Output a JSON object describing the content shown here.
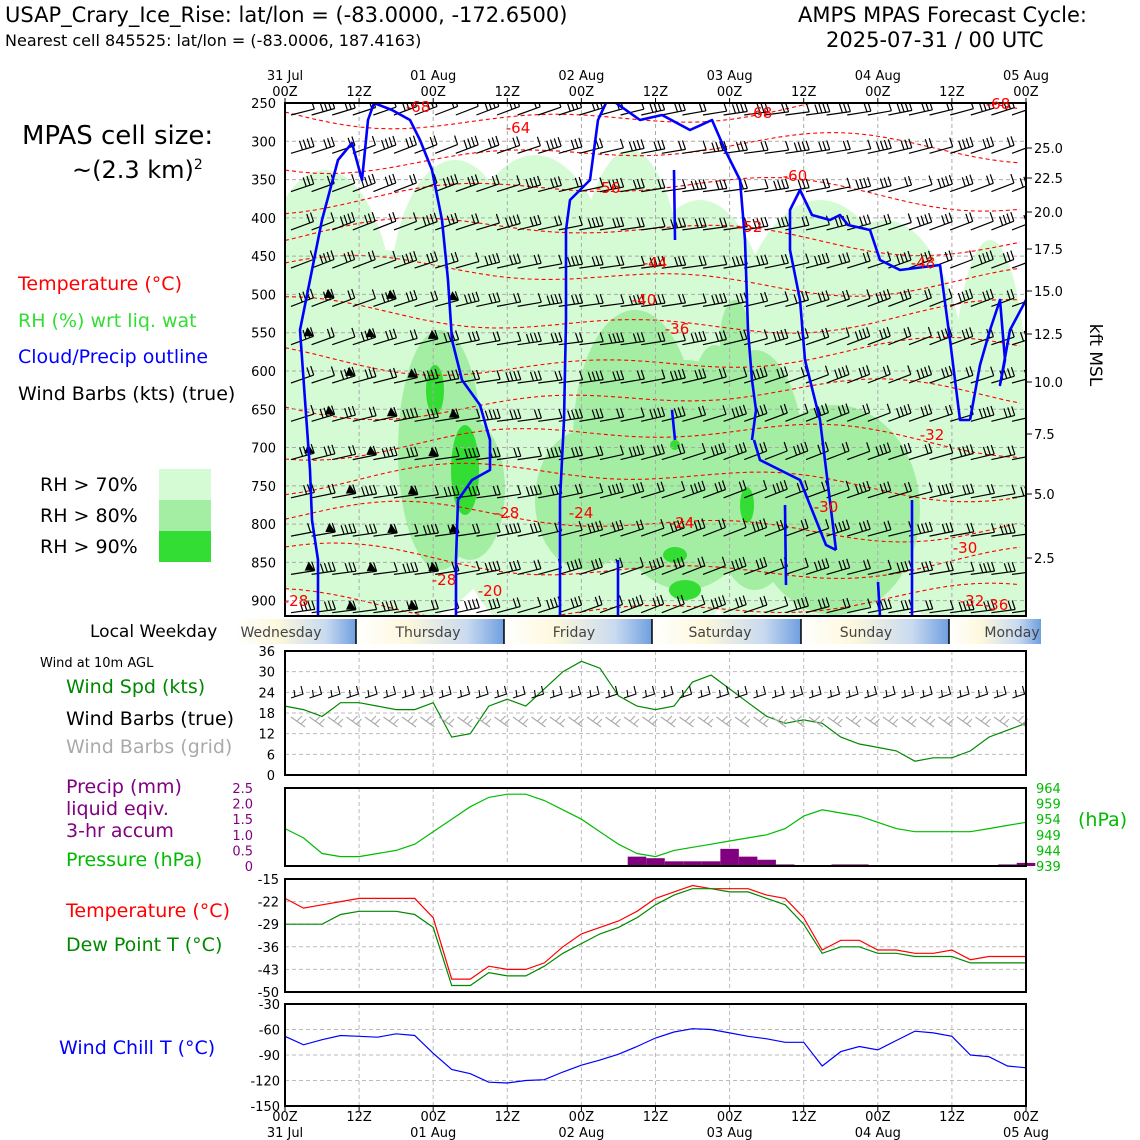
{
  "header": {
    "station": "USAP_Crary_Ice_Rise: lat/lon = (-83.0000, -172.6500)",
    "nearest": "Nearest cell 845525: lat/lon = (-83.0006, 187.4163)",
    "cycle_title": "AMPS MPAS Forecast Cycle:",
    "cycle_time": "2025-07-31 / 00 UTC"
  },
  "cell_size": {
    "line1": "MPAS cell size:",
    "line2": "~(2.3 km)",
    "sup": "2"
  },
  "legend": {
    "temperature": "Temperature (°C)",
    "rh": "RH (%) wrt liq. wat",
    "cloud": "Cloud/Precip outline",
    "barbs": "Wind Barbs (kts) (true)",
    "rh70": "RH > 70%",
    "rh80": "RH > 80%",
    "rh90": "RH > 90%"
  },
  "colors": {
    "temp": "#ff0000",
    "rh": "#33dd33",
    "rh70": "#d4fbd4",
    "rh80": "#a3eea3",
    "rh90": "#33dd33",
    "cloud": "#0000ff",
    "wind": "#008800",
    "precip": "#800080",
    "pressure": "#00bb00",
    "dew": "#008800",
    "chill": "#0000ff",
    "grid_barb": "#aaaaaa"
  },
  "time_axis": {
    "top_dates": [
      "31 Jul",
      "01 Aug",
      "02 Aug",
      "03 Aug",
      "04 Aug",
      "05 Aug"
    ],
    "ticks": [
      "00Z",
      "12Z",
      "00Z",
      "12Z",
      "00Z",
      "12Z",
      "00Z",
      "12Z",
      "00Z",
      "12Z",
      "00Z"
    ],
    "bottom_dates": [
      "31 Jul",
      "01 Aug",
      "02 Aug",
      "03 Aug",
      "04 Aug",
      "05 Aug"
    ]
  },
  "weekday": {
    "label": "Local Weekday",
    "days": [
      "Wednesday",
      "Thursday",
      "Friday",
      "Saturday",
      "Sunday",
      "Monday"
    ]
  },
  "cross_section": {
    "pressure_ticks": [
      "250",
      "300",
      "350",
      "400",
      "450",
      "500",
      "550",
      "600",
      "650",
      "700",
      "750",
      "800",
      "850",
      "900"
    ],
    "kft_ticks": [
      "25.0",
      "22.5",
      "20.0",
      "17.5",
      "15.0",
      "12.5",
      "10.0",
      "7.5",
      "5.0",
      "2.5"
    ],
    "kft_label": "kft MSL",
    "isotherm_labels": [
      "-68",
      "-64",
      "-68",
      "-68",
      "-60",
      "-56",
      "-52",
      "-48",
      "-44",
      "-40",
      "-36",
      "-32",
      "-28",
      "-24",
      "-30",
      "-28",
      "-28",
      "-24",
      "-20",
      "-30",
      "-32",
      "-36"
    ]
  },
  "wind_panel": {
    "title": "Wind at 10m AGL",
    "spd_label": "Wind Spd (kts)",
    "barbs_true": "Wind Barbs (true)",
    "barbs_grid": "Wind Barbs (grid)",
    "yticks": [
      "36",
      "30",
      "24",
      "18",
      "12",
      "6",
      "0"
    ]
  },
  "precip_panel": {
    "precip_label1": "Precip (mm)",
    "precip_label2": "liquid eqiv.",
    "precip_label3": "3-hr accum",
    "pressure_label": "Pressure (hPa)",
    "left_ticks": [
      "2.5",
      "2.0",
      "1.5",
      "1.0",
      "0.5",
      "0"
    ],
    "right_ticks": [
      "964",
      "959",
      "954",
      "949",
      "944",
      "939"
    ],
    "right_unit": "(hPa)"
  },
  "temp_panel": {
    "temp_label": "Temperature (°C)",
    "dew_label": "Dew Point T (°C)",
    "yticks": [
      "-15",
      "-22",
      "-29",
      "-36",
      "-43",
      "-50"
    ]
  },
  "chill_panel": {
    "label": "Wind Chill T (°C)",
    "yticks": [
      "-30",
      "-60",
      "-90",
      "-120",
      "-150"
    ]
  },
  "chart_data": [
    {
      "type": "line",
      "title": "Wind at 10m AGL",
      "ylabel": "Wind Spd (kts)",
      "ylim": [
        0,
        36
      ],
      "x_hours": [
        0,
        3,
        6,
        9,
        12,
        15,
        18,
        21,
        24,
        27,
        30,
        33,
        36,
        39,
        42,
        45,
        48,
        51,
        54,
        57,
        60,
        63,
        66,
        69,
        72,
        75,
        78,
        81,
        84,
        87,
        90,
        93,
        96,
        99,
        102,
        105,
        108,
        111,
        114,
        117,
        120
      ],
      "series": [
        {
          "name": "Wind Spd (kts)",
          "values": [
            20,
            19,
            17,
            21,
            21,
            20,
            19,
            19,
            21,
            11,
            12,
            20,
            22,
            20,
            25,
            30,
            33,
            31,
            23,
            20,
            19,
            20,
            27,
            29,
            25,
            21,
            17,
            15,
            16,
            15,
            11,
            9,
            8,
            7,
            4,
            5,
            5,
            7,
            11,
            13,
            15
          ]
        }
      ]
    },
    {
      "type": "bar",
      "title": "Precip (mm) liquid eqiv. 3-hr accum",
      "ylim": [
        0,
        2.5
      ],
      "x_hours": [
        57,
        60,
        63,
        66,
        69,
        72,
        75,
        78,
        81,
        84,
        87,
        90,
        93,
        96,
        99,
        102,
        105,
        108,
        111,
        114,
        117,
        120
      ],
      "values": [
        0.3,
        0.25,
        0.15,
        0.15,
        0.15,
        0.55,
        0.3,
        0.2,
        0.05,
        0.02,
        0.02,
        0.05,
        0.05,
        0.02,
        0.02,
        0.02,
        0.02,
        0.02,
        0.02,
        0.02,
        0.05,
        0.1
      ]
    },
    {
      "type": "line",
      "title": "Pressure (hPa)",
      "ylim": [
        939,
        964
      ],
      "x_hours": [
        0,
        3,
        6,
        9,
        12,
        15,
        18,
        21,
        24,
        27,
        30,
        33,
        36,
        39,
        42,
        45,
        48,
        51,
        54,
        57,
        60,
        63,
        66,
        69,
        72,
        75,
        78,
        81,
        84,
        87,
        90,
        93,
        96,
        99,
        102,
        105,
        108,
        111,
        114,
        117,
        120
      ],
      "series": [
        {
          "name": "Pressure (hPa)",
          "values": [
            951,
            948,
            943,
            942,
            942,
            943,
            944,
            946,
            950,
            954,
            958,
            961,
            962,
            962,
            960,
            957,
            954,
            950,
            946,
            943,
            942,
            944,
            945,
            946,
            947,
            948,
            949,
            951,
            955,
            957,
            956,
            955,
            953,
            951,
            950,
            950,
            950,
            950,
            951,
            952,
            953
          ]
        }
      ]
    },
    {
      "type": "line",
      "title": "Temperature / Dew Point",
      "ylim": [
        -50,
        -15
      ],
      "x_hours": [
        0,
        3,
        6,
        9,
        12,
        15,
        18,
        21,
        24,
        27,
        30,
        33,
        36,
        39,
        42,
        45,
        48,
        51,
        54,
        57,
        60,
        63,
        66,
        69,
        72,
        75,
        78,
        81,
        84,
        87,
        90,
        93,
        96,
        99,
        102,
        105,
        108,
        111,
        114,
        117,
        120
      ],
      "series": [
        {
          "name": "Temperature (°C)",
          "values": [
            -21,
            -24,
            -23,
            -22,
            -21,
            -21,
            -21,
            -21,
            -27,
            -46,
            -46,
            -42,
            -43,
            -43,
            -41,
            -36,
            -32,
            -30,
            -28,
            -25,
            -21,
            -19,
            -17,
            -18,
            -18,
            -18,
            -20,
            -21,
            -27,
            -37,
            -34,
            -34,
            -37,
            -37,
            -38,
            -38,
            -37,
            -40,
            -39,
            -39,
            -39
          ]
        },
        {
          "name": "Dew Point T (°C)",
          "values": [
            -29,
            -29,
            -29,
            -26,
            -25,
            -25,
            -25,
            -26,
            -30,
            -48,
            -48,
            -44,
            -45,
            -45,
            -42,
            -38,
            -35,
            -32,
            -30,
            -27,
            -23,
            -20,
            -18,
            -18,
            -19,
            -19,
            -21,
            -23,
            -29,
            -38,
            -36,
            -36,
            -38,
            -38,
            -39,
            -39,
            -39,
            -41,
            -41,
            -41,
            -41
          ]
        }
      ]
    },
    {
      "type": "line",
      "title": "Wind Chill T (°C)",
      "ylim": [
        -150,
        -30
      ],
      "x_hours": [
        0,
        3,
        6,
        9,
        12,
        15,
        18,
        21,
        24,
        27,
        30,
        33,
        36,
        39,
        42,
        45,
        48,
        51,
        54,
        57,
        60,
        63,
        66,
        69,
        72,
        75,
        78,
        81,
        84,
        87,
        90,
        93,
        96,
        99,
        102,
        105,
        108,
        111,
        114,
        117,
        120
      ],
      "series": [
        {
          "name": "Wind Chill T (°C)",
          "values": [
            -68,
            -78,
            -72,
            -67,
            -68,
            -69,
            -65,
            -67,
            -88,
            -107,
            -112,
            -122,
            -123,
            -120,
            -119,
            -110,
            -102,
            -96,
            -89,
            -80,
            -70,
            -63,
            -59,
            -60,
            -64,
            -68,
            -71,
            -75,
            -75,
            -103,
            -86,
            -80,
            -84,
            -73,
            -62,
            -64,
            -68,
            -90,
            -92,
            -103,
            -105
          ]
        }
      ]
    }
  ]
}
